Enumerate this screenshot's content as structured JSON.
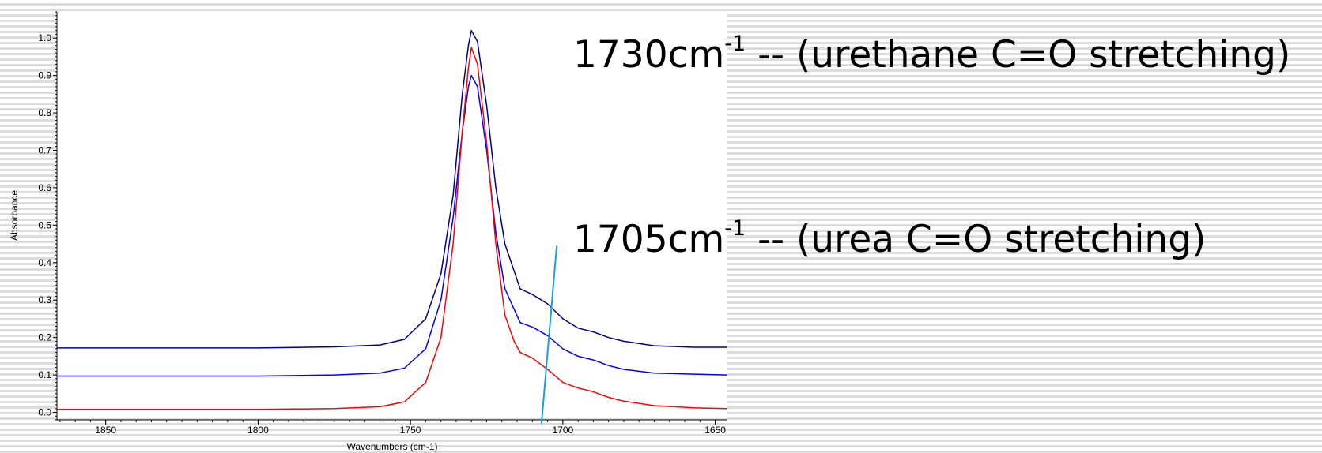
{
  "chart_data": {
    "type": "line",
    "xlabel": "Wavenumbers (cm-1)",
    "ylabel": "Absorbance",
    "xlim": [
      1866,
      1646
    ],
    "ylim": [
      -0.02,
      1.07
    ],
    "x_reversed": true,
    "xticks": [
      1850,
      1800,
      1750,
      1700,
      1650
    ],
    "xtick_labels": [
      "1850",
      "1800",
      "1750",
      "1700",
      "1650"
    ],
    "yticks": [
      0.0,
      0.1,
      0.2,
      0.3,
      0.4,
      0.5,
      0.6,
      0.7,
      0.8,
      0.9,
      1.0
    ],
    "ytick_labels": [
      "0.0",
      "0.1",
      "0.2",
      "0.3",
      "0.4",
      "0.5",
      "0.6",
      "0.7",
      "0.8",
      "0.9",
      "1.0"
    ],
    "grid": false,
    "series": [
      {
        "color": "#00008b",
        "points": [
          [
            1866,
            0.172
          ],
          [
            1800,
            0.172
          ],
          [
            1775,
            0.175
          ],
          [
            1760,
            0.18
          ],
          [
            1752,
            0.195
          ],
          [
            1745,
            0.25
          ],
          [
            1740,
            0.37
          ],
          [
            1736,
            0.58
          ],
          [
            1733,
            0.85
          ],
          [
            1731,
            0.98
          ],
          [
            1730,
            1.02
          ],
          [
            1728,
            0.99
          ],
          [
            1725,
            0.82
          ],
          [
            1722,
            0.6
          ],
          [
            1719,
            0.45
          ],
          [
            1714,
            0.33
          ],
          [
            1710,
            0.315
          ],
          [
            1705,
            0.29
          ],
          [
            1700,
            0.25
          ],
          [
            1695,
            0.225
          ],
          [
            1690,
            0.215
          ],
          [
            1685,
            0.2
          ],
          [
            1680,
            0.19
          ],
          [
            1670,
            0.178
          ],
          [
            1657,
            0.174
          ],
          [
            1646,
            0.174
          ]
        ]
      },
      {
        "color": "#0000ff",
        "points": [
          [
            1866,
            0.097
          ],
          [
            1800,
            0.097
          ],
          [
            1775,
            0.1
          ],
          [
            1760,
            0.105
          ],
          [
            1752,
            0.118
          ],
          [
            1745,
            0.17
          ],
          [
            1740,
            0.3
          ],
          [
            1736,
            0.52
          ],
          [
            1733,
            0.75
          ],
          [
            1731,
            0.87
          ],
          [
            1730,
            0.9
          ],
          [
            1728,
            0.87
          ],
          [
            1725,
            0.7
          ],
          [
            1722,
            0.48
          ],
          [
            1719,
            0.33
          ],
          [
            1714,
            0.24
          ],
          [
            1710,
            0.228
          ],
          [
            1705,
            0.205
          ],
          [
            1700,
            0.17
          ],
          [
            1695,
            0.15
          ],
          [
            1690,
            0.14
          ],
          [
            1685,
            0.125
          ],
          [
            1680,
            0.115
          ],
          [
            1670,
            0.105
          ],
          [
            1657,
            0.102
          ],
          [
            1646,
            0.1
          ]
        ]
      },
      {
        "color": "#ff0000",
        "points": [
          [
            1866,
            0.008
          ],
          [
            1800,
            0.008
          ],
          [
            1775,
            0.01
          ],
          [
            1760,
            0.015
          ],
          [
            1752,
            0.028
          ],
          [
            1745,
            0.08
          ],
          [
            1740,
            0.2
          ],
          [
            1736,
            0.45
          ],
          [
            1733,
            0.75
          ],
          [
            1731,
            0.92
          ],
          [
            1730,
            0.975
          ],
          [
            1728,
            0.93
          ],
          [
            1725,
            0.72
          ],
          [
            1722,
            0.45
          ],
          [
            1719,
            0.26
          ],
          [
            1716,
            0.19
          ],
          [
            1714,
            0.16
          ],
          [
            1710,
            0.145
          ],
          [
            1705,
            0.115
          ],
          [
            1700,
            0.08
          ],
          [
            1695,
            0.065
          ],
          [
            1690,
            0.055
          ],
          [
            1685,
            0.04
          ],
          [
            1680,
            0.03
          ],
          [
            1670,
            0.018
          ],
          [
            1657,
            0.012
          ],
          [
            1646,
            0.01
          ]
        ]
      }
    ],
    "marker_line": {
      "color": "#1aa0e0",
      "from": [
        1707,
        -0.03
      ],
      "to": [
        1702,
        0.445
      ]
    }
  },
  "annotations": {
    "urethane": {
      "value": "1730cm",
      "sup": "-1",
      "text": " -- (urethane C=O stretching)"
    },
    "urea": {
      "value": "1705cm",
      "sup": "-1",
      "text": " -- (urea C=O stretching)"
    }
  }
}
